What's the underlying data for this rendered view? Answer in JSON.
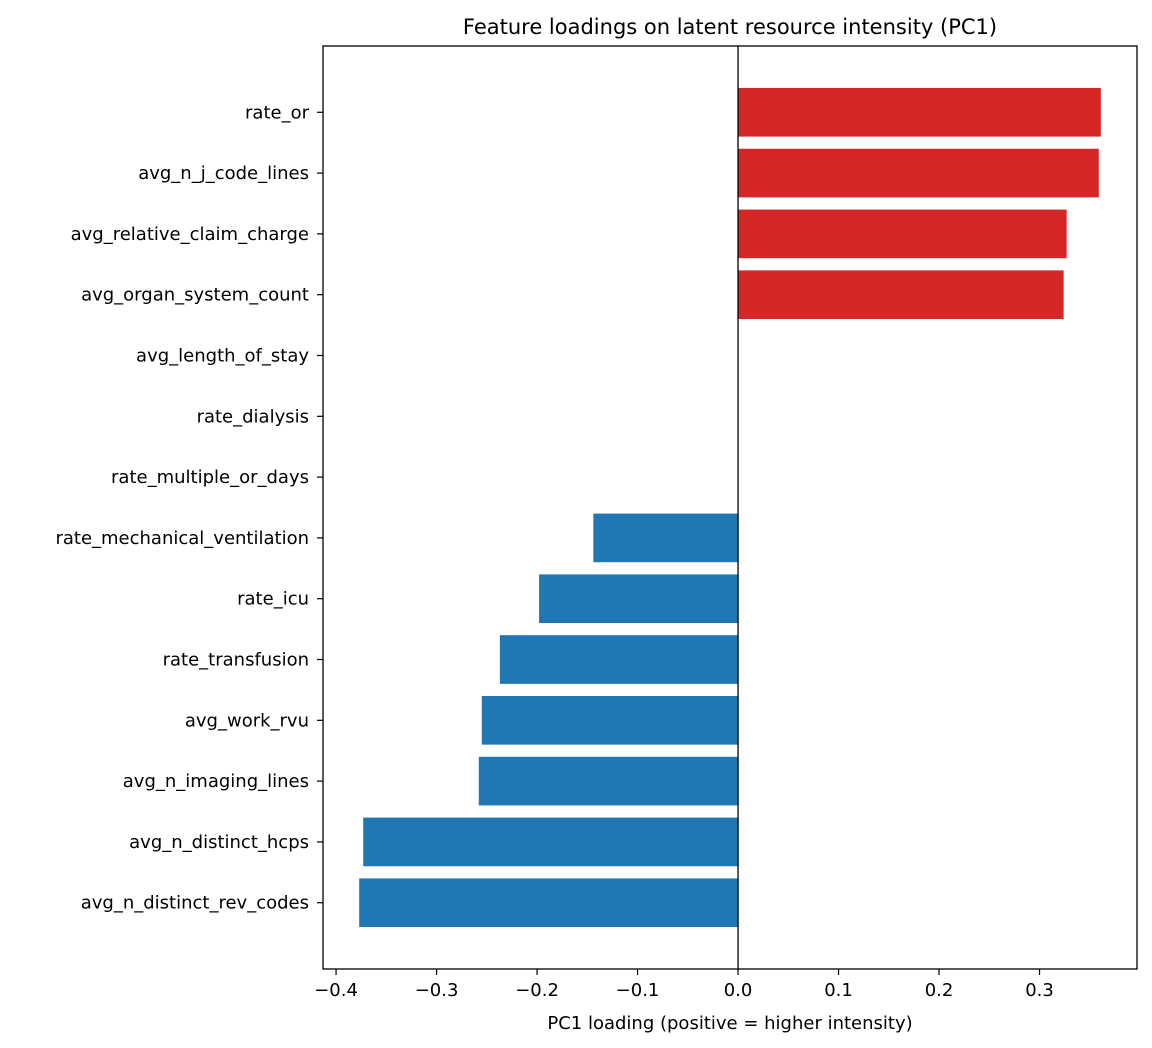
{
  "chart_data": {
    "type": "bar",
    "orientation": "horizontal",
    "title": "Feature loadings on latent resource intensity (PC1)",
    "xlabel": "PC1 loading (positive = higher intensity)",
    "ylabel": "",
    "xlim": [
      -0.413,
      0.397
    ],
    "xticks": [
      -0.4,
      -0.3,
      -0.2,
      -0.1,
      0.0,
      0.1,
      0.2,
      0.3
    ],
    "xtick_labels": [
      "−0.4",
      "−0.3",
      "−0.2",
      "−0.1",
      "0.0",
      "0.1",
      "0.2",
      "0.3"
    ],
    "grid": false,
    "zero_line": true,
    "colors": {
      "positive": "#d62728",
      "negative": "#1f77b4"
    },
    "categories": [
      "rate_or",
      "avg_n_j_code_lines",
      "avg_relative_claim_charge",
      "avg_organ_system_count",
      "avg_length_of_stay",
      "rate_dialysis",
      "rate_multiple_or_days",
      "rate_mechanical_ventilation",
      "rate_icu",
      "rate_transfusion",
      "avg_work_rvu",
      "avg_n_imaging_lines",
      "avg_n_distinct_hcps",
      "avg_n_distinct_rev_codes"
    ],
    "values": [
      0.361,
      0.359,
      0.327,
      0.324,
      0.0,
      0.0,
      0.0,
      -0.144,
      -0.198,
      -0.237,
      -0.255,
      -0.258,
      -0.373,
      -0.377
    ]
  }
}
